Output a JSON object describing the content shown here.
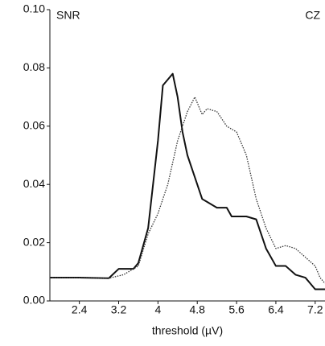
{
  "chart_data": {
    "type": "line",
    "y_label": "SNR",
    "channel": "CZ",
    "x_label": "threshold (µV)",
    "xlim": [
      1.8,
      7.4
    ],
    "xticks": [
      2.4,
      3.2,
      4.0,
      4.8,
      5.6,
      6.4,
      7.2
    ],
    "ylim": [
      0,
      0.1
    ],
    "yticks": [
      {
        "value": 0,
        "label": "0.00"
      },
      {
        "value": 0.02,
        "label": "0.02"
      },
      {
        "value": 0.04,
        "label": "0.04"
      },
      {
        "value": 0.06,
        "label": "0.06"
      },
      {
        "value": 0.08,
        "label": "0.08"
      },
      {
        "value": 0.1,
        "label": "0.10"
      }
    ],
    "series": [
      {
        "color": "#111111",
        "style": "solid",
        "x": [
          1.8,
          2.4,
          3.0,
          3.2,
          3.5,
          3.6,
          3.8,
          4.0,
          4.1,
          4.3,
          4.4,
          4.5,
          4.6,
          4.8,
          4.9,
          5.0,
          5.2,
          5.4,
          5.5,
          5.8,
          6.0,
          6.2,
          6.4,
          6.6,
          6.8,
          7.0,
          7.1,
          7.2,
          7.4
        ],
        "values": [
          0.008,
          0.008,
          0.0078,
          0.011,
          0.011,
          0.013,
          0.025,
          0.055,
          0.074,
          0.078,
          0.07,
          0.058,
          0.05,
          0.04,
          0.035,
          0.034,
          0.032,
          0.032,
          0.029,
          0.029,
          0.028,
          0.018,
          0.012,
          0.012,
          0.009,
          0.008,
          0.006,
          0.004,
          0.004
        ]
      },
      {
        "color": "#333333",
        "style": "dotted",
        "x": [
          1.8,
          3.0,
          3.3,
          3.6,
          3.8,
          4.0,
          4.2,
          4.4,
          4.6,
          4.75,
          4.9,
          5.0,
          5.2,
          5.4,
          5.6,
          5.8,
          6.0,
          6.2,
          6.4,
          6.6,
          6.8,
          7.0,
          7.2,
          7.3,
          7.4
        ],
        "values": [
          0.008,
          0.0078,
          0.009,
          0.012,
          0.023,
          0.03,
          0.04,
          0.055,
          0.065,
          0.07,
          0.064,
          0.066,
          0.065,
          0.06,
          0.058,
          0.05,
          0.035,
          0.025,
          0.018,
          0.019,
          0.018,
          0.015,
          0.012,
          0.008,
          0.006
        ]
      }
    ]
  }
}
